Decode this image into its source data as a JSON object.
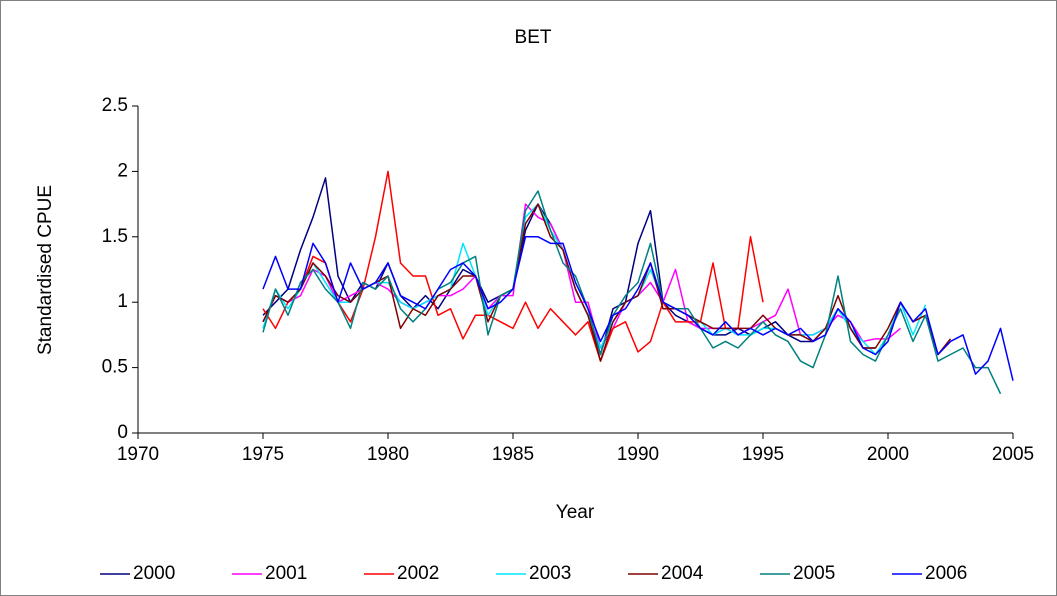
{
  "chart_data": {
    "type": "line",
    "title": "BET",
    "x_label": "Year",
    "y_label": "Standardised CPUE",
    "xlim": [
      1970,
      2005
    ],
    "xticks": [
      1970,
      1975,
      1980,
      1985,
      1990,
      1995,
      2000,
      2005
    ],
    "ylim": [
      0,
      2.5
    ],
    "yticks": [
      0,
      0.5,
      1,
      1.5,
      2,
      2.5
    ],
    "grid": false,
    "legend": "bottom",
    "x": [
      1975,
      1975.5,
      1976,
      1976.5,
      1977,
      1977.5,
      1978,
      1978.5,
      1979,
      1979.5,
      1980,
      1980.5,
      1981,
      1981.5,
      1982,
      1982.5,
      1983,
      1983.5,
      1984,
      1984.5,
      1985,
      1985.5,
      1986,
      1986.5,
      1987,
      1987.5,
      1988,
      1988.5,
      1989,
      1989.5,
      1990,
      1990.5,
      1991,
      1991.5,
      1992,
      1992.5,
      1993,
      1993.5,
      1994,
      1994.5,
      1995,
      1995.5,
      1996,
      1996.5,
      1997,
      1997.5,
      1998,
      1998.5,
      1999,
      1999.5,
      2000,
      2000.5,
      2001,
      2001.5,
      2002,
      2002.5,
      2003,
      2003.5,
      2004,
      2004.5,
      2005
    ],
    "series": [
      {
        "name": "2000",
        "color": "#000080",
        "values": [
          0.9,
          1.0,
          1.1,
          1.4,
          1.65,
          1.95,
          1.2,
          1.0,
          1.15,
          1.1,
          1.3,
          1.05,
          0.95,
          1.05,
          0.95,
          1.1,
          1.25,
          1.2,
          1.0,
          1.05,
          1.1,
          1.55,
          1.75,
          1.6,
          1.4,
          1.1,
          0.9,
          0.6,
          0.95,
          1.0,
          1.45,
          1.7,
          1.0,
          0.9,
          0.85,
          0.8,
          0.75,
          0.75,
          0.8,
          0.75,
          0.8,
          0.85,
          0.75,
          0.7,
          0.7,
          0.8,
          0.95,
          0.8,
          0.65,
          0.65,
          null,
          null,
          null,
          null,
          null,
          null,
          null,
          null,
          null,
          null,
          null
        ]
      },
      {
        "name": "2001",
        "color": "#ff00ff",
        "values": [
          0.85,
          1.05,
          1.0,
          1.05,
          1.25,
          1.2,
          1.0,
          1.05,
          1.1,
          1.15,
          1.1,
          1.0,
          0.95,
          1.0,
          1.05,
          1.05,
          1.1,
          1.2,
          0.95,
          1.05,
          1.05,
          1.75,
          1.65,
          1.6,
          1.4,
          1.0,
          1.0,
          0.65,
          0.8,
          1.0,
          1.05,
          1.15,
          1.0,
          1.25,
          0.85,
          0.8,
          0.8,
          0.8,
          0.75,
          0.8,
          0.85,
          0.9,
          1.1,
          0.75,
          0.75,
          0.8,
          0.9,
          0.85,
          0.7,
          0.72,
          0.72,
          0.8,
          null,
          null,
          null,
          null,
          null,
          null,
          null,
          null,
          null
        ]
      },
      {
        "name": "2002",
        "color": "#ff0000",
        "values": [
          0.95,
          0.8,
          1.0,
          1.1,
          1.35,
          1.3,
          1.0,
          0.85,
          1.1,
          1.5,
          2.0,
          1.3,
          1.2,
          1.2,
          0.9,
          0.95,
          0.72,
          0.9,
          0.9,
          0.85,
          0.8,
          1.0,
          0.8,
          0.95,
          0.85,
          0.75,
          0.85,
          0.55,
          0.8,
          0.85,
          0.62,
          0.7,
          1.0,
          0.85,
          0.85,
          0.85,
          1.3,
          0.8,
          0.8,
          1.5,
          1.0,
          null,
          null,
          null,
          null,
          null,
          null,
          null,
          null,
          null,
          null,
          null,
          null,
          null,
          null,
          null,
          null,
          null,
          null,
          null,
          null
        ]
      },
      {
        "name": "2003",
        "color": "#00e5ff",
        "values": [
          0.8,
          1.1,
          0.95,
          1.1,
          1.3,
          1.15,
          1.0,
          1.0,
          1.1,
          1.15,
          1.15,
          1.0,
          0.95,
          1.0,
          1.05,
          1.1,
          1.45,
          1.2,
          0.9,
          1.05,
          1.1,
          1.65,
          1.75,
          1.55,
          1.4,
          1.1,
          0.9,
          0.65,
          0.85,
          1.0,
          1.05,
          1.25,
          1.0,
          0.95,
          0.9,
          0.85,
          0.75,
          0.8,
          0.75,
          0.75,
          0.8,
          0.8,
          0.75,
          0.75,
          0.75,
          0.8,
          0.95,
          0.8,
          0.7,
          0.6,
          0.75,
          1.0,
          0.75,
          0.98,
          null,
          null,
          null,
          null,
          null,
          null,
          null
        ]
      },
      {
        "name": "2004",
        "color": "#800000",
        "values": [
          0.85,
          1.05,
          1.0,
          1.1,
          1.3,
          1.2,
          1.05,
          1.0,
          1.1,
          1.15,
          1.2,
          0.8,
          0.95,
          0.9,
          1.05,
          1.1,
          1.2,
          1.2,
          0.85,
          1.05,
          1.1,
          1.6,
          1.75,
          1.5,
          1.4,
          1.1,
          0.9,
          0.55,
          0.85,
          1.0,
          1.05,
          1.3,
          0.95,
          0.95,
          0.9,
          0.85,
          0.8,
          0.8,
          0.8,
          0.8,
          0.9,
          0.8,
          0.75,
          0.75,
          0.7,
          0.8,
          1.05,
          0.8,
          0.65,
          0.65,
          0.8,
          1.0,
          0.85,
          0.9,
          0.6,
          0.72,
          null,
          null,
          null,
          null,
          null
        ]
      },
      {
        "name": "2005",
        "color": "#008080",
        "values": [
          0.77,
          1.1,
          0.9,
          1.15,
          1.25,
          1.1,
          1.0,
          0.8,
          1.15,
          1.1,
          1.2,
          0.95,
          0.85,
          0.95,
          1.1,
          1.15,
          1.3,
          1.35,
          0.75,
          1.05,
          1.1,
          1.7,
          1.85,
          1.55,
          1.3,
          1.2,
          0.95,
          0.6,
          0.9,
          1.05,
          1.15,
          1.45,
          1.0,
          0.95,
          0.95,
          0.8,
          0.65,
          0.7,
          0.65,
          0.75,
          0.85,
          0.75,
          0.7,
          0.55,
          0.5,
          0.75,
          1.2,
          0.7,
          0.6,
          0.55,
          0.75,
          0.95,
          0.7,
          0.9,
          0.55,
          0.6,
          0.65,
          0.5,
          0.5,
          0.3,
          null
        ]
      },
      {
        "name": "2006",
        "color": "#0000ff",
        "values": [
          1.1,
          1.35,
          1.1,
          1.1,
          1.45,
          1.3,
          1.0,
          1.3,
          1.1,
          1.15,
          1.3,
          1.05,
          1.0,
          0.95,
          1.1,
          1.25,
          1.3,
          1.2,
          0.95,
          1.0,
          1.1,
          1.5,
          1.5,
          1.45,
          1.45,
          1.15,
          0.95,
          0.7,
          0.9,
          0.95,
          1.1,
          1.3,
          1.0,
          0.95,
          0.9,
          0.8,
          0.75,
          0.85,
          0.75,
          0.8,
          0.75,
          0.8,
          0.75,
          0.8,
          0.7,
          0.75,
          0.95,
          0.85,
          0.65,
          0.6,
          0.7,
          1.0,
          0.85,
          0.95,
          0.6,
          0.7,
          0.75,
          0.45,
          0.55,
          0.8,
          0.4
        ]
      }
    ]
  }
}
